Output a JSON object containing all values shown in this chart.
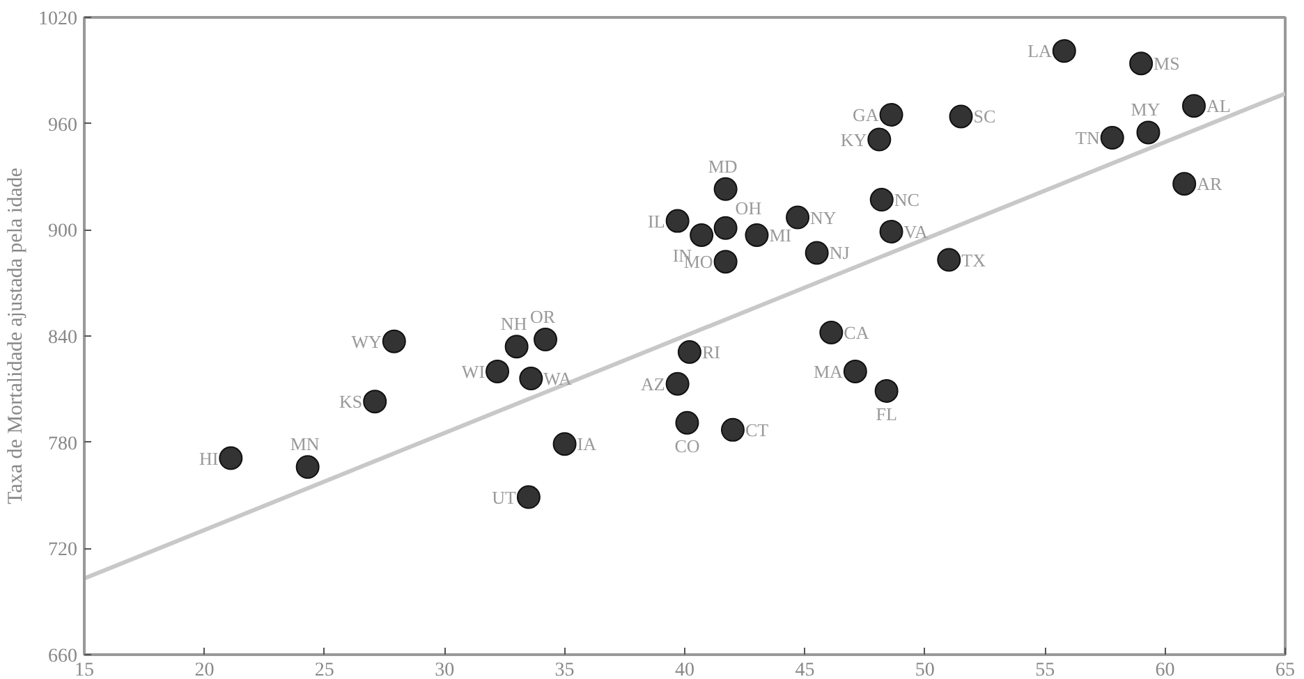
{
  "chart_data": {
    "type": "scatter",
    "ylabel": "Taxa de Mortalidade ajustada pela idade",
    "xlim": [
      15,
      65
    ],
    "ylim": [
      660,
      1020
    ],
    "xticks": [
      15,
      20,
      25,
      30,
      35,
      40,
      45,
      50,
      55,
      60,
      65
    ],
    "yticks": [
      660,
      720,
      780,
      840,
      900,
      960,
      1020
    ],
    "grid": false,
    "series": [
      {
        "color": "#333333",
        "marker": "circle",
        "x": [
          55.8,
          59.0,
          48.6,
          51.5,
          48.1,
          57.8,
          59.3,
          61.2,
          60.8,
          41.7,
          39.7,
          40.7,
          41.7,
          41.7,
          43.0,
          44.7,
          45.5,
          48.2,
          48.6,
          51.0,
          46.1,
          40.2,
          47.1,
          48.4,
          39.7,
          40.1,
          42.0,
          21.1,
          24.3,
          27.1,
          35.0,
          33.5,
          32.2,
          33.6,
          27.9,
          33.0,
          34.2
        ],
        "values": [
          1001,
          994,
          965,
          964,
          951,
          952,
          955,
          970,
          926,
          923,
          905,
          897,
          901,
          882,
          897,
          907,
          887,
          917,
          899,
          883,
          842,
          831,
          820,
          809,
          813,
          791,
          787,
          771,
          766,
          803,
          779,
          749,
          820,
          816,
          837,
          834,
          838
        ],
        "value_labels": [
          "LA",
          "MS",
          "GA",
          "SC",
          "KY",
          "TN",
          "MY",
          "AL",
          "AR",
          "MD",
          "IL",
          "IN",
          "OH",
          "MO",
          "MI",
          "NY",
          "NJ",
          "NC",
          "VA",
          "TX",
          "CA",
          "RI",
          "MA",
          "FL",
          "AZ",
          "CO",
          "CT",
          "HI",
          "MN",
          "KS",
          "IA",
          "UT",
          "WI",
          "WA",
          "WY",
          "NH",
          "OR"
        ]
      },
      {
        "type": "line",
        "color": "#c8c8c8",
        "x": [
          15,
          65
        ],
        "values": [
          703,
          977
        ]
      }
    ]
  }
}
